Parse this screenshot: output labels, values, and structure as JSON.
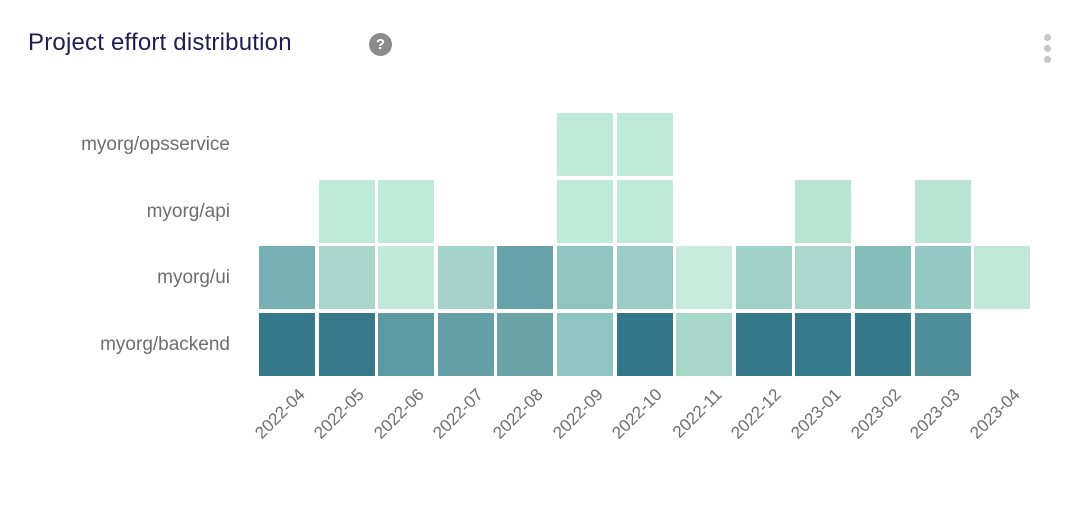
{
  "header": {
    "title": "Project effort distribution",
    "help_glyph": "?"
  },
  "colors": {
    "background": "#ffffff",
    "title_text": "#1e1e55",
    "axis_text": "#6e6e6e",
    "help_icon_bg": "#8b8b8b",
    "help_icon_glyph": "#ffffff",
    "menu_dots": "#c5c5c5"
  },
  "chart_data": {
    "type": "heatmap",
    "title": "Project effort distribution",
    "x_categories": [
      "2022-04",
      "2022-05",
      "2022-06",
      "2022-07",
      "2022-08",
      "2022-09",
      "2022-10",
      "2022-11",
      "2022-12",
      "2023-01",
      "2023-02",
      "2023-03",
      "2023-04"
    ],
    "y_categories": [
      "myorg/opsservice",
      "myorg/api",
      "myorg/ui",
      "myorg/backend"
    ],
    "legend_position": "none",
    "grid": "off",
    "x_label_rotation_deg": -45,
    "value_encoding": "cell color darkness = effort share (no numeric labels shown)",
    "cell_colors": [
      [
        null,
        null,
        null,
        null,
        null,
        "#bfe9d8",
        "#bfe9d8",
        null,
        null,
        null,
        null,
        null,
        null
      ],
      [
        null,
        "#bfe9d8",
        "#bfe9d8",
        null,
        null,
        "#bfe9d8",
        "#bfe9d8",
        null,
        null,
        "#b9e4d4",
        null,
        "#b9e4d4",
        null
      ],
      [
        "#76b0b4",
        "#a9d5cc",
        "#c2e8d9",
        "#a5d2ca",
        "#67a1a9",
        "#8fc5bf",
        "#9bcdc6",
        "#c7ebdd",
        "#a0d1c8",
        "#abd7ce",
        "#85bdbb",
        "#94c9c3",
        "#c1e7d8"
      ],
      [
        "#35788a",
        "#37798b",
        "#5b99a3",
        "#649ea6",
        "#69a2a7",
        "#8ec5c0",
        "#337689",
        "#a7d7c9",
        "#34788a",
        "#357a8b",
        "#34788a",
        "#4f8e9b",
        null
      ]
    ]
  }
}
